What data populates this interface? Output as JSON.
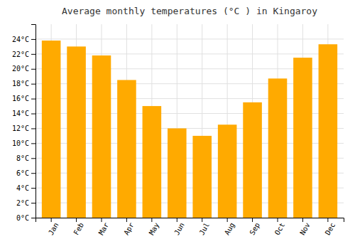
{
  "chart_data": {
    "type": "bar",
    "title": "Average monthly temperatures (°C ) in Kingaroy",
    "categories": [
      "Jan",
      "Feb",
      "Mar",
      "Apr",
      "May",
      "Jun",
      "Jul",
      "Aug",
      "Sep",
      "Oct",
      "Nov",
      "Dec"
    ],
    "values": [
      23.8,
      23.0,
      21.8,
      18.5,
      15.0,
      12.0,
      11.0,
      12.5,
      15.5,
      18.7,
      21.5,
      23.3
    ],
    "color": "#FFAA00",
    "ylim": [
      0,
      26
    ],
    "yticks": [
      {
        "value": 0,
        "label": "0°C"
      },
      {
        "value": 2,
        "label": "2°C"
      },
      {
        "value": 4,
        "label": "4°C"
      },
      {
        "value": 6,
        "label": "6°C"
      },
      {
        "value": 8,
        "label": "8°C"
      },
      {
        "value": 10,
        "label": "10°C"
      },
      {
        "value": 12,
        "label": "12°C"
      },
      {
        "value": 14,
        "label": "14°C"
      },
      {
        "value": 16,
        "label": "16°C"
      },
      {
        "value": 18,
        "label": "18°C"
      },
      {
        "value": 20,
        "label": "20°C"
      },
      {
        "value": 22,
        "label": "22°C"
      },
      {
        "value": 24,
        "label": "24°C"
      }
    ],
    "grid": true
  }
}
